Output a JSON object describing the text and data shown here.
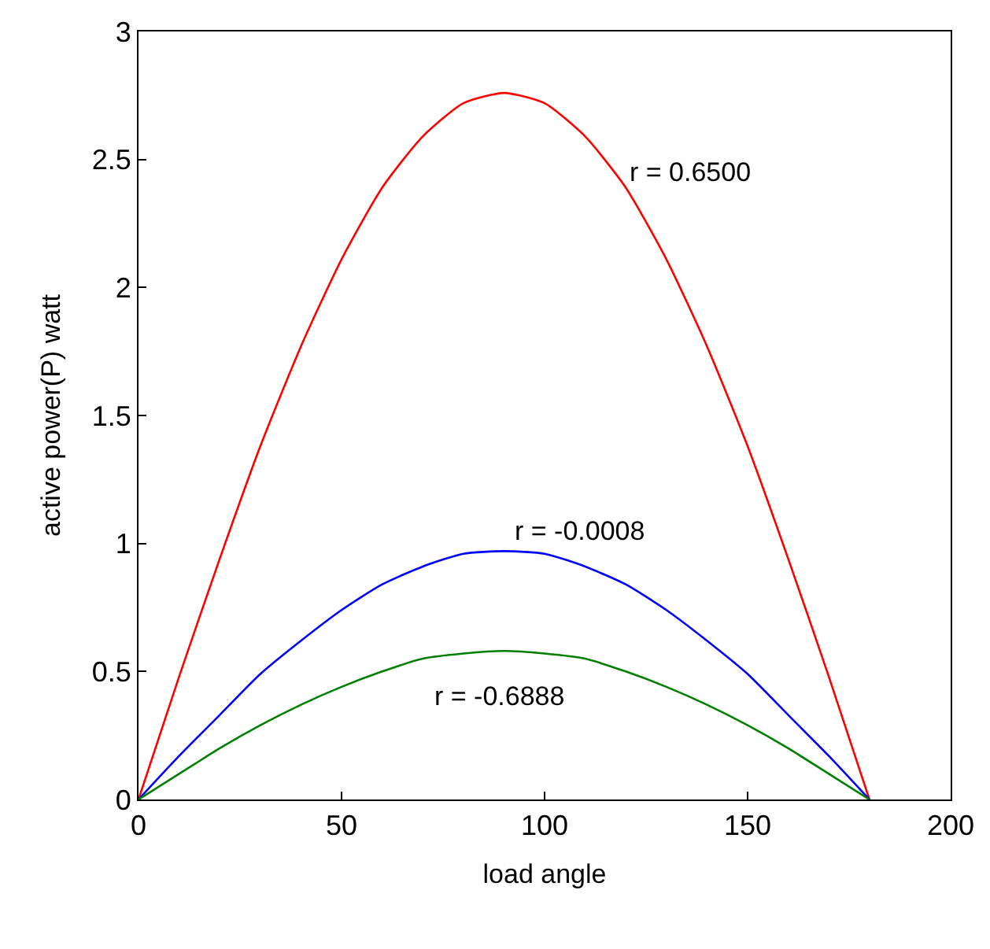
{
  "chart_data": {
    "type": "line",
    "xlabel": "load angle",
    "ylabel": "active power(P) watt",
    "x": [
      0,
      10,
      20,
      30,
      40,
      50,
      60,
      70,
      80,
      90,
      100,
      110,
      120,
      130,
      140,
      150,
      160,
      170,
      180
    ],
    "series": [
      {
        "color": "#ff0000",
        "values": [
          0,
          0.48,
          0.94,
          1.38,
          1.77,
          2.11,
          2.39,
          2.59,
          2.72,
          2.76,
          2.72,
          2.59,
          2.39,
          2.11,
          1.77,
          1.38,
          0.94,
          0.48,
          0
        ]
      },
      {
        "color": "#0000ff",
        "values": [
          0,
          0.17,
          0.33,
          0.49,
          0.62,
          0.74,
          0.84,
          0.91,
          0.96,
          0.97,
          0.96,
          0.91,
          0.84,
          0.74,
          0.62,
          0.49,
          0.33,
          0.17,
          0
        ]
      },
      {
        "color": "#008000",
        "values": [
          0,
          0.1,
          0.2,
          0.29,
          0.37,
          0.44,
          0.5,
          0.55,
          0.57,
          0.58,
          0.57,
          0.55,
          0.5,
          0.44,
          0.37,
          0.29,
          0.2,
          0.1,
          0
        ]
      }
    ],
    "annotations": [
      "r = 0.6500",
      "r = -0.0008",
      "r = -0.6888"
    ],
    "xlim": [
      0,
      200
    ],
    "xticks": [
      0,
      50,
      100,
      150,
      200
    ],
    "ylim": [
      0,
      3
    ],
    "yticks": [
      0,
      0.5,
      1,
      1.5,
      2,
      2.5,
      3
    ],
    "marker": "none",
    "line_style": "solid"
  }
}
